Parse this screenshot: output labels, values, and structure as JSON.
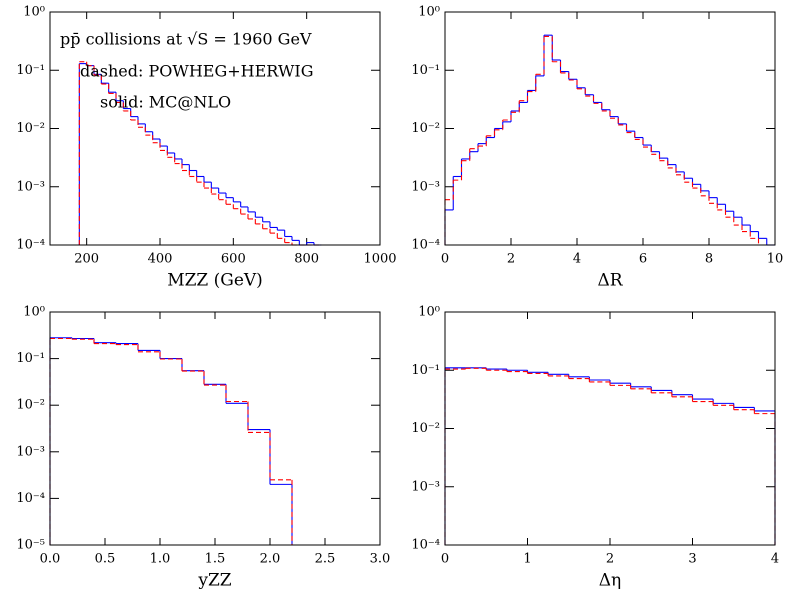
{
  "chart_data": [
    {
      "type": "histogram",
      "xlabel": "MZZ (GeV)",
      "yscale": "log",
      "xlim": [
        100,
        1000
      ],
      "xticks": [
        200,
        400,
        600,
        800,
        1000
      ],
      "ylim": [
        0.0001,
        1
      ],
      "yticks": [
        {
          "value": 1,
          "label": "10⁰"
        },
        {
          "value": 0.1,
          "label": "10⁻¹"
        },
        {
          "value": 0.01,
          "label": "10⁻²"
        },
        {
          "value": 0.001,
          "label": "10⁻³"
        },
        {
          "value": 0.0001,
          "label": "10⁻⁴"
        }
      ],
      "annotations": [
        "pp̄ collisions at √S = 1960 GeV",
        "dashed: POWHEG+HERWIG",
        "solid: MC@NLO"
      ],
      "bins": [
        180,
        200,
        220,
        240,
        260,
        280,
        300,
        320,
        340,
        360,
        380,
        400,
        420,
        440,
        460,
        480,
        500,
        520,
        540,
        560,
        580,
        600,
        620,
        640,
        660,
        680,
        700,
        720,
        740,
        760,
        780,
        800,
        820,
        840
      ],
      "series": [
        {
          "color": "#0000ff",
          "dashed": false,
          "values": [
            0.13,
            0.12,
            0.085,
            0.06,
            0.042,
            0.03,
            0.022,
            0.016,
            0.012,
            0.0088,
            0.0066,
            0.005,
            0.0038,
            0.003,
            0.0024,
            0.0019,
            0.0015,
            0.0012,
            0.00095,
            0.00078,
            0.00065,
            0.00055,
            0.00045,
            0.00037,
            0.0003,
            0.00025,
            0.0002,
            0.00018,
            0.00014,
            0.00012,
            0.0001,
            0.00011,
            0.0001
          ]
        },
        {
          "color": "#ff0000",
          "dashed": true,
          "values": [
            0.14,
            0.12,
            0.083,
            0.058,
            0.04,
            0.028,
            0.02,
            0.014,
            0.0105,
            0.0077,
            0.0057,
            0.0042,
            0.0032,
            0.0025,
            0.0019,
            0.0015,
            0.0012,
            0.00095,
            0.00075,
            0.0006,
            0.0005,
            0.00042,
            0.00034,
            0.00028,
            0.00023,
            0.00019,
            0.00016,
            0.00013,
            0.00011,
            0.0001,
            0.0001,
            0.0001,
            0.0001
          ]
        }
      ]
    },
    {
      "type": "histogram",
      "xlabel": "ΔR",
      "yscale": "log",
      "xlim": [
        0,
        10
      ],
      "xticks": [
        0,
        2,
        4,
        6,
        8,
        10
      ],
      "ylim": [
        0.0001,
        1
      ],
      "yticks": [
        {
          "value": 1,
          "label": "10⁰"
        },
        {
          "value": 0.1,
          "label": "10⁻¹"
        },
        {
          "value": 0.01,
          "label": "10⁻²"
        },
        {
          "value": 0.001,
          "label": "10⁻³"
        },
        {
          "value": 0.0001,
          "label": "10⁻⁴"
        }
      ],
      "bins": [
        0,
        0.25,
        0.5,
        0.75,
        1,
        1.25,
        1.5,
        1.75,
        2,
        2.25,
        2.5,
        2.75,
        3,
        3.25,
        3.5,
        3.75,
        4,
        4.25,
        4.5,
        4.75,
        5,
        5.25,
        5.5,
        5.75,
        6,
        6.25,
        6.5,
        6.75,
        7,
        7.25,
        7.5,
        7.75,
        8,
        8.25,
        8.5,
        8.75,
        9,
        9.25,
        9.5,
        9.75,
        10
      ],
      "series": [
        {
          "color": "#0000ff",
          "dashed": false,
          "values": [
            0.0004,
            0.0015,
            0.003,
            0.004,
            0.0055,
            0.007,
            0.01,
            0.013,
            0.02,
            0.028,
            0.045,
            0.08,
            0.4,
            0.15,
            0.095,
            0.07,
            0.05,
            0.038,
            0.028,
            0.021,
            0.016,
            0.012,
            0.009,
            0.007,
            0.0052,
            0.004,
            0.0031,
            0.0024,
            0.0018,
            0.0014,
            0.0011,
            0.00085,
            0.00065,
            0.0005,
            0.00038,
            0.0003,
            0.00022,
            0.00017,
            0.00013,
            0.0001
          ]
        },
        {
          "color": "#ff0000",
          "dashed": true,
          "values": [
            0.0006,
            0.0013,
            0.0028,
            0.0045,
            0.005,
            0.0075,
            0.0095,
            0.014,
            0.019,
            0.03,
            0.043,
            0.085,
            0.38,
            0.14,
            0.09,
            0.068,
            0.048,
            0.036,
            0.027,
            0.02,
            0.015,
            0.0115,
            0.0085,
            0.0065,
            0.0048,
            0.0036,
            0.0028,
            0.0021,
            0.0016,
            0.0012,
            0.00095,
            0.0007,
            0.00052,
            0.0004,
            0.0003,
            0.00022,
            0.00017,
            0.00013,
            0.0001,
            0.0001
          ]
        }
      ]
    },
    {
      "type": "histogram",
      "xlabel": "yZZ",
      "yscale": "log",
      "xlim": [
        0,
        3
      ],
      "xticks": [
        {
          "value": 0,
          "label": "0.0"
        },
        0.5,
        {
          "value": 1,
          "label": "1.0"
        },
        1.5,
        {
          "value": 2,
          "label": "2.0"
        },
        2.5,
        {
          "value": 3,
          "label": "3.0"
        }
      ],
      "ylim": [
        1e-05,
        1
      ],
      "yticks": [
        {
          "value": 1,
          "label": "10⁰"
        },
        {
          "value": 0.1,
          "label": "10⁻¹"
        },
        {
          "value": 0.01,
          "label": "10⁻²"
        },
        {
          "value": 0.001,
          "label": "10⁻³"
        },
        {
          "value": 0.0001,
          "label": "10⁻⁴"
        },
        {
          "value": 1e-05,
          "label": "10⁻⁵"
        }
      ],
      "bins": [
        0,
        0.2,
        0.4,
        0.6,
        0.8,
        1,
        1.2,
        1.4,
        1.6,
        1.8,
        2,
        2.2
      ],
      "series": [
        {
          "color": "#0000ff",
          "dashed": false,
          "values": [
            0.28,
            0.27,
            0.22,
            0.21,
            0.15,
            0.1,
            0.055,
            0.028,
            0.011,
            0.003,
            0.0002
          ]
        },
        {
          "color": "#ff0000",
          "dashed": true,
          "values": [
            0.27,
            0.26,
            0.21,
            0.2,
            0.14,
            0.098,
            0.054,
            0.027,
            0.012,
            0.0026,
            0.00025
          ]
        }
      ]
    },
    {
      "type": "histogram",
      "xlabel": "Δη",
      "yscale": "log",
      "xlim": [
        0,
        4
      ],
      "xticks": [
        0,
        1,
        2,
        3,
        4
      ],
      "ylim": [
        0.0001,
        1
      ],
      "yticks": [
        {
          "value": 1,
          "label": "10⁰"
        },
        {
          "value": 0.1,
          "label": "10⁻¹"
        },
        {
          "value": 0.01,
          "label": "10⁻²"
        },
        {
          "value": 0.001,
          "label": "10⁻³"
        },
        {
          "value": 0.0001,
          "label": "10⁻⁴"
        }
      ],
      "bins": [
        0,
        0.25,
        0.5,
        0.75,
        1,
        1.25,
        1.5,
        1.75,
        2,
        2.25,
        2.5,
        2.75,
        3,
        3.25,
        3.5,
        3.75,
        4
      ],
      "series": [
        {
          "color": "#0000ff",
          "dashed": false,
          "values": [
            0.11,
            0.11,
            0.105,
            0.1,
            0.092,
            0.085,
            0.077,
            0.068,
            0.06,
            0.052,
            0.045,
            0.038,
            0.032,
            0.027,
            0.023,
            0.02
          ]
        },
        {
          "color": "#ff0000",
          "dashed": true,
          "values": [
            0.105,
            0.108,
            0.1,
            0.095,
            0.088,
            0.08,
            0.072,
            0.063,
            0.055,
            0.048,
            0.041,
            0.035,
            0.029,
            0.025,
            0.021,
            0.018
          ]
        }
      ]
    }
  ]
}
